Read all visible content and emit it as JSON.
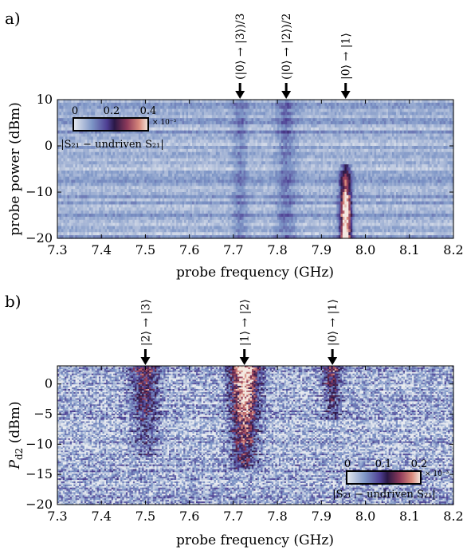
{
  "panels": [
    {
      "label": "a)",
      "xlabel": "probe frequency (GHz)",
      "ylabel": "probe power (dBm)",
      "chart_type": "heatmap",
      "xlim": [
        7.3,
        8.2
      ],
      "ylim": [
        -20,
        10
      ],
      "xticks": [
        "7.3",
        "7.4",
        "7.5",
        "7.6",
        "7.7",
        "7.8",
        "7.9",
        "8.0",
        "8.1",
        "8.2"
      ],
      "yticks": [
        "10",
        "0",
        "−10",
        "−20"
      ],
      "annotations": [
        {
          "text": "(|0⟩ → |3⟩)/3",
          "x": 7.715
        },
        {
          "text": "(|0⟩ → |2⟩)/2",
          "x": 7.82
        },
        {
          "text": "|0⟩ → |1⟩",
          "x": 7.955
        }
      ],
      "colorbar": {
        "ticks": [
          "0",
          "0.2",
          "0.4"
        ],
        "exponent": "× 10⁻³",
        "label": "|S₂₁ − undriven S₂₁|",
        "range": [
          0,
          0.4
        ]
      }
    },
    {
      "label": "b)",
      "xlabel": "probe frequency (GHz)",
      "ylabel": "P_d2 (dBm)",
      "ylabel_main": "P",
      "ylabel_sub": "d2",
      "ylabel_unit": " (dBm)",
      "chart_type": "heatmap",
      "xlim": [
        7.3,
        8.2
      ],
      "ylim": [
        -20,
        3
      ],
      "xticks": [
        "7.3",
        "7.4",
        "7.5",
        "7.6",
        "7.7",
        "7.8",
        "7.9",
        "8.0",
        "8.1",
        "8.2"
      ],
      "yticks": [
        "0",
        "−5",
        "−10",
        "−15",
        "−20"
      ],
      "annotations": [
        {
          "text": "|2⟩ → |3⟩",
          "x": 7.5
        },
        {
          "text": "|1⟩ → |2⟩",
          "x": 7.725
        },
        {
          "text": "|0⟩ → |1⟩",
          "x": 7.925
        }
      ],
      "colorbar": {
        "ticks": [
          "0",
          "0.1",
          "0.2"
        ],
        "exponent": "× 10⁻³",
        "label": "|S₂₁ − undriven S₂₁|",
        "range": [
          0,
          0.2
        ]
      }
    }
  ],
  "chart_data": [
    {
      "type": "heatmap",
      "title": "",
      "xlabel": "probe frequency (GHz)",
      "ylabel": "probe power (dBm)",
      "xlim": [
        7.3,
        8.2
      ],
      "ylim": [
        -20,
        10
      ],
      "colorbar_label": "|S21 − undriven S21|",
      "colorbar_range": [
        0,
        0.4
      ],
      "colorbar_scale": "× 10^-3",
      "features": [
        {
          "center_x": 7.715,
          "width": 0.015,
          "y_range": [
            -20,
            10
          ],
          "peak_value": 0.05
        },
        {
          "center_x": 7.82,
          "width": 0.02,
          "y_range": [
            -20,
            10
          ],
          "peak_value": 0.06
        },
        {
          "center_x": 7.955,
          "width": 0.012,
          "y_range": [
            -20,
            -5
          ],
          "peak_value": 0.4
        }
      ],
      "annotations": [
        "(|0⟩ → |3⟩)/3",
        "(|0⟩ → |2⟩)/2",
        "|0⟩ → |1⟩"
      ]
    },
    {
      "type": "heatmap",
      "title": "",
      "xlabel": "probe frequency (GHz)",
      "ylabel": "P_d2 (dBm)",
      "xlim": [
        7.3,
        8.2
      ],
      "ylim": [
        -20,
        3
      ],
      "colorbar_label": "|S21 − undriven S21|",
      "colorbar_range": [
        0,
        0.2
      ],
      "colorbar_scale": "× 10^-3",
      "features": [
        {
          "center_x": 7.5,
          "width": 0.03,
          "y_range": [
            -10,
            3
          ],
          "peak_value": 0.1
        },
        {
          "center_x": 7.725,
          "width": 0.03,
          "y_range": [
            -12,
            3
          ],
          "peak_value": 0.2
        },
        {
          "center_x": 7.925,
          "width": 0.02,
          "y_range": [
            -4,
            3
          ],
          "peak_value": 0.1
        }
      ],
      "annotations": [
        "|2⟩ → |3⟩",
        "|1⟩ → |2⟩",
        "|0⟩ → |1⟩"
      ]
    }
  ]
}
